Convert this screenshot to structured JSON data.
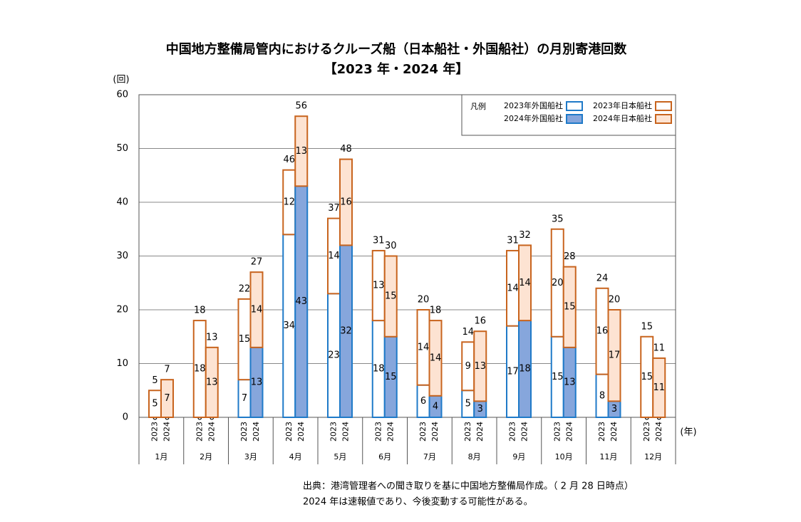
{
  "chart_data": {
    "type": "grouped_stacked_bar",
    "title": "中国地方整備局管内におけるクルーズ船（日本船社・外国船社）の月別寄港回数",
    "subtitle": "【2023 年・2024 年】",
    "y_unit": "(回)",
    "x_unit": "(年)",
    "legend_title": "凡例",
    "categories": [
      "1月",
      "2月",
      "3月",
      "4月",
      "5月",
      "6月",
      "7月",
      "8月",
      "9月",
      "10月",
      "11月",
      "12月"
    ],
    "groups": [
      "2023",
      "2024"
    ],
    "series": [
      {
        "name": "2023年外国船社",
        "group": 0,
        "color": "#ffffff",
        "edgecolor": "#1f7ac8",
        "values": [
          0,
          0,
          7,
          34,
          23,
          18,
          6,
          5,
          17,
          15,
          8,
          0
        ]
      },
      {
        "name": "2023年日本船社",
        "group": 0,
        "color": "#ffffff",
        "edgecolor": "#c8641e",
        "values": [
          5,
          18,
          15,
          12,
          14,
          13,
          14,
          9,
          14,
          20,
          16,
          15
        ]
      },
      {
        "name": "2024年外国船社",
        "group": 1,
        "color": "#86a6dc",
        "edgecolor": "#1f7ac8",
        "values": [
          0,
          0,
          13,
          43,
          32,
          15,
          4,
          3,
          18,
          13,
          3,
          0
        ]
      },
      {
        "name": "2024年日本船社",
        "group": 1,
        "color": "#fde3d2",
        "edgecolor": "#c8641e",
        "values": [
          7,
          13,
          14,
          13,
          16,
          15,
          14,
          13,
          14,
          15,
          17,
          11
        ]
      }
    ],
    "totals": [
      [
        5,
        18,
        22,
        46,
        37,
        31,
        20,
        14,
        31,
        35,
        24,
        15
      ],
      [
        7,
        13,
        27,
        56,
        48,
        30,
        18,
        16,
        32,
        28,
        20,
        11
      ]
    ],
    "ylim": [
      0,
      60
    ],
    "yticks": [
      0,
      10,
      20,
      30,
      40,
      50,
      60
    ],
    "grid": true,
    "notes": [
      "出典：港湾管理者への聞き取りを基に中国地方整備局作成。（ 2 月 28 日時点）",
      "2024 年は速報値であり、今後変動する可能性がある。"
    ]
  }
}
